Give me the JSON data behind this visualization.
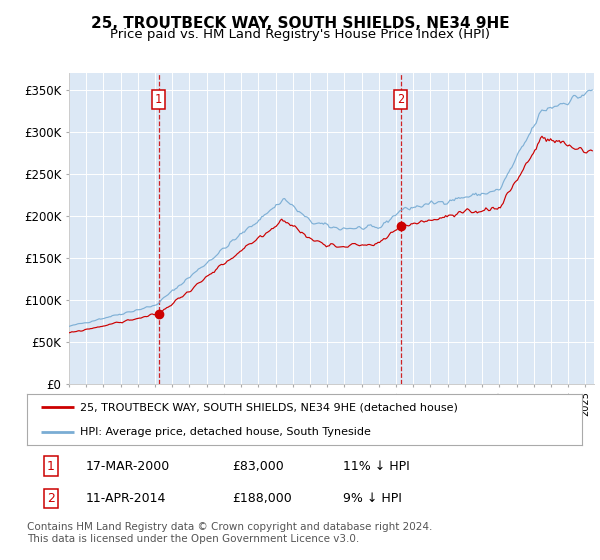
{
  "title": "25, TROUTBECK WAY, SOUTH SHIELDS, NE34 9HE",
  "subtitle": "Price paid vs. HM Land Registry's House Price Index (HPI)",
  "ylim": [
    0,
    370000
  ],
  "yticks": [
    0,
    50000,
    100000,
    150000,
    200000,
    250000,
    300000,
    350000
  ],
  "ytick_labels": [
    "£0",
    "£50K",
    "£100K",
    "£150K",
    "£200K",
    "£250K",
    "£300K",
    "£350K"
  ],
  "background_color": "#dce8f5",
  "hpi_color": "#7aadd4",
  "price_color": "#cc0000",
  "sale1_date": 2000.21,
  "sale1_price": 83000,
  "sale2_date": 2014.28,
  "sale2_price": 188000,
  "legend_label1": "25, TROUTBECK WAY, SOUTH SHIELDS, NE34 9HE (detached house)",
  "legend_label2": "HPI: Average price, detached house, South Tyneside",
  "table_row1": [
    "1",
    "17-MAR-2000",
    "£83,000",
    "11% ↓ HPI"
  ],
  "table_row2": [
    "2",
    "11-APR-2014",
    "£188,000",
    "9% ↓ HPI"
  ],
  "footer": "Contains HM Land Registry data © Crown copyright and database right 2024.\nThis data is licensed under the Open Government Licence v3.0."
}
